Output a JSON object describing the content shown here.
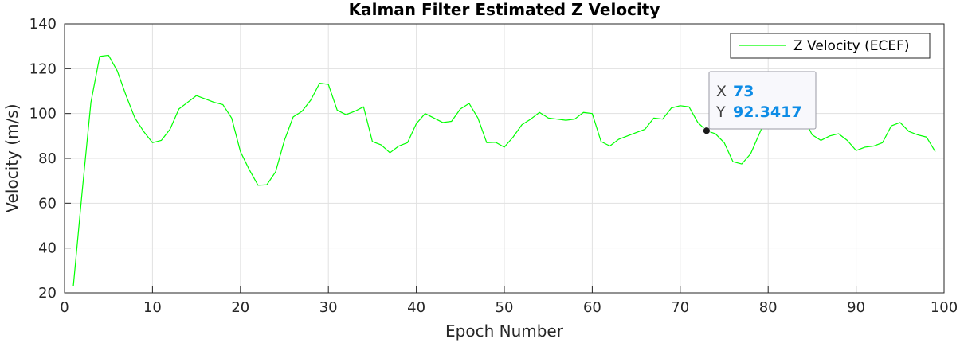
{
  "chart_data": {
    "type": "line",
    "title": "Kalman Filter Estimated Z Velocity",
    "xlabel": "Epoch Number",
    "ylabel": "Velocity (m/s)",
    "xlim": [
      0,
      100
    ],
    "ylim": [
      20,
      140
    ],
    "xticks": [
      "0",
      "10",
      "20",
      "30",
      "40",
      "50",
      "60",
      "70",
      "80",
      "90",
      "100"
    ],
    "yticks": [
      "20",
      "40",
      "60",
      "80",
      "100",
      "120",
      "140"
    ],
    "grid": true,
    "legend_position": "top-right",
    "series": [
      {
        "name": "Z Velocity (ECEF)",
        "color": "#00ff00",
        "x": [
          1,
          2,
          3,
          4,
          5,
          6,
          7,
          8,
          9,
          10,
          11,
          12,
          13,
          14,
          15,
          16,
          17,
          18,
          19,
          20,
          21,
          22,
          23,
          24,
          25,
          26,
          27,
          28,
          29,
          30,
          31,
          32,
          33,
          34,
          35,
          36,
          37,
          38,
          39,
          40,
          41,
          42,
          43,
          44,
          45,
          46,
          47,
          48,
          49,
          50,
          51,
          52,
          53,
          54,
          55,
          56,
          57,
          58,
          59,
          60,
          61,
          62,
          63,
          64,
          65,
          66,
          67,
          68,
          69,
          70,
          71,
          72,
          73,
          74,
          75,
          76,
          77,
          78,
          79,
          80,
          81,
          82,
          83,
          84,
          85,
          86,
          87,
          88,
          89,
          90,
          91,
          92,
          93,
          94,
          95,
          96,
          97,
          98,
          99
        ],
        "y": [
          23,
          65,
          105,
          125.5,
          126,
          119,
          108,
          98,
          92,
          87,
          88,
          93,
          102,
          105,
          108,
          106.5,
          105,
          104,
          98,
          83,
          75,
          68,
          68.2,
          74,
          88,
          98.5,
          101,
          106,
          113.5,
          113,
          101.5,
          99.5,
          101,
          103,
          87.5,
          86,
          82.5,
          85.5,
          87,
          95.5,
          100,
          98,
          96,
          96.5,
          102,
          104.5,
          98,
          87,
          87.2,
          85,
          89.5,
          95,
          97.5,
          100.5,
          98,
          97.5,
          97,
          97.5,
          100.5,
          100,
          87.5,
          85.5,
          88.5,
          90,
          91.5,
          93,
          98,
          97.5,
          102.5,
          103.5,
          103,
          96,
          92.3,
          91,
          87,
          78.5,
          77.5,
          82,
          91,
          100,
          100,
          99.5,
          98,
          98.5,
          90.5,
          88,
          90,
          91,
          88,
          83.5,
          85,
          85.5,
          87,
          94.5,
          96,
          92,
          90.5,
          89.5,
          83
        ]
      }
    ],
    "datatip": {
      "x_key": "X",
      "x_value": "73",
      "y_key": "Y",
      "y_value": "92.3417",
      "point_x": 73,
      "point_y": 92.3417,
      "value_color": "#0d8ce6"
    }
  }
}
